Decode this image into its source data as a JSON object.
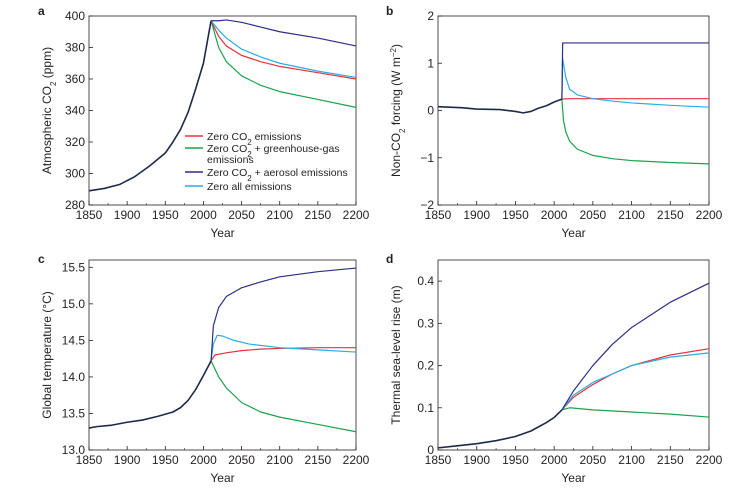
{
  "colors": {
    "zero_co2": "#e8323c",
    "zero_co2_ghg": "#1aa34a",
    "zero_co2_aerosol": "#2b2f86",
    "zero_all": "#27aee4",
    "historical": "#1e2a4a",
    "axis": "#231f20"
  },
  "legend": [
    {
      "key": "zero_co2",
      "label_html": "Zero CO<tspan baseline-shift='sub' font-size='8'>2</tspan> emissions"
    },
    {
      "key": "zero_co2_ghg",
      "label_html": "Zero CO<tspan baseline-shift='sub' font-size='8'>2</tspan> + greenhouse-gas",
      "label2": "emissions"
    },
    {
      "key": "zero_co2_aerosol",
      "label_html": "Zero CO<tspan baseline-shift='sub' font-size='8'>2</tspan> + aerosol emissions"
    },
    {
      "key": "zero_all",
      "label_html": "Zero all emissions"
    }
  ],
  "chart_data": [
    {
      "panel": "a",
      "type": "line",
      "xlabel": "Year",
      "ylabel_html": "Atmospheric CO<tspan baseline-shift='sub' font-size='8'>2</tspan> (ppm)",
      "xlim": [
        1850,
        2200
      ],
      "ylim": [
        280,
        400
      ],
      "xticks": [
        1850,
        1900,
        1950,
        2000,
        2050,
        2100,
        2150,
        2200
      ],
      "yticks": [
        280,
        300,
        320,
        340,
        360,
        380,
        400
      ],
      "ytick_labels": [
        "280",
        "300",
        "320",
        "340",
        "360",
        "380",
        "400"
      ],
      "historical": [
        [
          1850,
          289
        ],
        [
          1870,
          290.5
        ],
        [
          1890,
          293
        ],
        [
          1910,
          298
        ],
        [
          1930,
          305
        ],
        [
          1950,
          313
        ],
        [
          1960,
          320
        ],
        [
          1970,
          328
        ],
        [
          1980,
          339
        ],
        [
          1990,
          354
        ],
        [
          2000,
          370
        ],
        [
          2010,
          397
        ]
      ],
      "series": [
        {
          "key": "zero_co2",
          "points": [
            [
              2010,
              397
            ],
            [
              2020,
              387
            ],
            [
              2030,
              381
            ],
            [
              2050,
              375
            ],
            [
              2075,
              371
            ],
            [
              2100,
              368
            ],
            [
              2150,
              364
            ],
            [
              2200,
              360
            ]
          ]
        },
        {
          "key": "zero_co2_ghg",
          "points": [
            [
              2010,
              397
            ],
            [
              2020,
              380
            ],
            [
              2030,
              371
            ],
            [
              2050,
              362
            ],
            [
              2075,
              356
            ],
            [
              2100,
              352
            ],
            [
              2150,
              347
            ],
            [
              2200,
              342
            ]
          ]
        },
        {
          "key": "zero_co2_aerosol",
          "points": [
            [
              2010,
              397
            ],
            [
              2020,
              397
            ],
            [
              2030,
              397.5
            ],
            [
              2050,
              396
            ],
            [
              2075,
              393
            ],
            [
              2100,
              390
            ],
            [
              2150,
              386
            ],
            [
              2200,
              381
            ]
          ]
        },
        {
          "key": "zero_all",
          "points": [
            [
              2010,
              397
            ],
            [
              2020,
              391
            ],
            [
              2030,
              386
            ],
            [
              2050,
              379
            ],
            [
              2075,
              374
            ],
            [
              2100,
              370
            ],
            [
              2150,
              365
            ],
            [
              2200,
              361
            ]
          ]
        }
      ]
    },
    {
      "panel": "b",
      "type": "line",
      "xlabel": "Year",
      "ylabel_html": "Non-CO<tspan baseline-shift='sub' font-size='8'>2</tspan> forcing (W m<tspan baseline-shift='super' font-size='8'>−2</tspan>)",
      "xlim": [
        1850,
        2200
      ],
      "ylim": [
        -2,
        2
      ],
      "xticks": [
        1850,
        1900,
        1950,
        2000,
        2050,
        2100,
        2150,
        2200
      ],
      "yticks": [
        -2,
        -1,
        0,
        1,
        2
      ],
      "ytick_labels": [
        "−2",
        "−1",
        "0",
        "1",
        "2"
      ],
      "historical": [
        [
          1850,
          0.08
        ],
        [
          1880,
          0.06
        ],
        [
          1900,
          0.03
        ],
        [
          1930,
          0.02
        ],
        [
          1950,
          -0.02
        ],
        [
          1960,
          -0.05
        ],
        [
          1970,
          -0.02
        ],
        [
          1980,
          0.05
        ],
        [
          1990,
          0.1
        ],
        [
          2000,
          0.18
        ],
        [
          2010,
          0.24
        ]
      ],
      "series": [
        {
          "key": "zero_co2",
          "points": [
            [
              2010,
              0.24
            ],
            [
              2020,
              0.25
            ],
            [
              2100,
              0.25
            ],
            [
              2200,
              0.25
            ]
          ]
        },
        {
          "key": "zero_co2_ghg",
          "points": [
            [
              2010,
              0.24
            ],
            [
              2012,
              -0.2
            ],
            [
              2015,
              -0.45
            ],
            [
              2020,
              -0.65
            ],
            [
              2030,
              -0.82
            ],
            [
              2050,
              -0.95
            ],
            [
              2075,
              -1.02
            ],
            [
              2100,
              -1.06
            ],
            [
              2150,
              -1.1
            ],
            [
              2200,
              -1.13
            ]
          ]
        },
        {
          "key": "zero_co2_aerosol",
          "points": [
            [
              2010,
              0.24
            ],
            [
              2011,
              1.43
            ],
            [
              2200,
              1.43
            ]
          ]
        },
        {
          "key": "zero_all",
          "points": [
            [
              2010,
              0.24
            ],
            [
              2011,
              1.1
            ],
            [
              2015,
              0.7
            ],
            [
              2020,
              0.45
            ],
            [
              2030,
              0.33
            ],
            [
              2050,
              0.25
            ],
            [
              2075,
              0.2
            ],
            [
              2100,
              0.16
            ],
            [
              2150,
              0.11
            ],
            [
              2200,
              0.07
            ]
          ]
        }
      ]
    },
    {
      "panel": "c",
      "type": "line",
      "xlabel": "Year",
      "ylabel": "Global temperature (°C)",
      "xlim": [
        1850,
        2200
      ],
      "ylim": [
        13.0,
        15.6
      ],
      "xticks": [
        1850,
        1900,
        1950,
        2000,
        2050,
        2100,
        2150,
        2200
      ],
      "yticks": [
        13.0,
        13.5,
        14.0,
        14.5,
        15.0,
        15.5
      ],
      "ytick_labels": [
        "13.0",
        "13.5",
        "14.0",
        "14.5",
        "15.0",
        "15.5"
      ],
      "historical": [
        [
          1850,
          13.3
        ],
        [
          1860,
          13.32
        ],
        [
          1880,
          13.34
        ],
        [
          1900,
          13.38
        ],
        [
          1920,
          13.41
        ],
        [
          1940,
          13.46
        ],
        [
          1960,
          13.52
        ],
        [
          1970,
          13.58
        ],
        [
          1980,
          13.68
        ],
        [
          1990,
          13.83
        ],
        [
          2000,
          14.02
        ],
        [
          2010,
          14.22
        ]
      ],
      "series": [
        {
          "key": "zero_co2",
          "points": [
            [
              2010,
              14.22
            ],
            [
              2015,
              14.3
            ],
            [
              2030,
              14.33
            ],
            [
              2050,
              14.36
            ],
            [
              2075,
              14.38
            ],
            [
              2100,
              14.39
            ],
            [
              2150,
              14.4
            ],
            [
              2200,
              14.4
            ]
          ]
        },
        {
          "key": "zero_co2_ghg",
          "points": [
            [
              2010,
              14.22
            ],
            [
              2020,
              14.0
            ],
            [
              2030,
              13.85
            ],
            [
              2050,
              13.65
            ],
            [
              2075,
              13.52
            ],
            [
              2100,
              13.45
            ],
            [
              2150,
              13.35
            ],
            [
              2200,
              13.25
            ]
          ]
        },
        {
          "key": "zero_co2_aerosol",
          "points": [
            [
              2010,
              14.22
            ],
            [
              2013,
              14.7
            ],
            [
              2020,
              14.95
            ],
            [
              2030,
              15.1
            ],
            [
              2050,
              15.22
            ],
            [
              2075,
              15.3
            ],
            [
              2100,
              15.37
            ],
            [
              2150,
              15.44
            ],
            [
              2200,
              15.49
            ]
          ]
        },
        {
          "key": "zero_all",
          "points": [
            [
              2010,
              14.22
            ],
            [
              2013,
              14.45
            ],
            [
              2018,
              14.57
            ],
            [
              2025,
              14.56
            ],
            [
              2040,
              14.5
            ],
            [
              2060,
              14.45
            ],
            [
              2100,
              14.4
            ],
            [
              2150,
              14.37
            ],
            [
              2200,
              14.34
            ]
          ]
        }
      ]
    },
    {
      "panel": "d",
      "type": "line",
      "xlabel": "Year",
      "ylabel": "Thermal sea-level rise (m)",
      "xlim": [
        1850,
        2200
      ],
      "ylim": [
        0,
        0.45
      ],
      "xticks": [
        1850,
        1900,
        1950,
        2000,
        2050,
        2100,
        2150,
        2200
      ],
      "yticks": [
        0,
        0.1,
        0.2,
        0.3,
        0.4
      ],
      "ytick_labels": [
        "0",
        "0.1",
        "0.2",
        "0.3",
        "0.4"
      ],
      "historical": [
        [
          1850,
          0.005
        ],
        [
          1875,
          0.01
        ],
        [
          1900,
          0.015
        ],
        [
          1925,
          0.022
        ],
        [
          1950,
          0.032
        ],
        [
          1970,
          0.045
        ],
        [
          1990,
          0.065
        ],
        [
          2000,
          0.077
        ],
        [
          2010,
          0.095
        ]
      ],
      "series": [
        {
          "key": "zero_co2",
          "points": [
            [
              2010,
              0.095
            ],
            [
              2025,
              0.125
            ],
            [
              2050,
              0.155
            ],
            [
              2075,
              0.18
            ],
            [
              2100,
              0.2
            ],
            [
              2150,
              0.225
            ],
            [
              2200,
              0.24
            ]
          ]
        },
        {
          "key": "zero_co2_ghg",
          "points": [
            [
              2010,
              0.095
            ],
            [
              2020,
              0.1
            ],
            [
              2050,
              0.095
            ],
            [
              2100,
              0.09
            ],
            [
              2150,
              0.085
            ],
            [
              2200,
              0.078
            ]
          ]
        },
        {
          "key": "zero_co2_aerosol",
          "points": [
            [
              2010,
              0.095
            ],
            [
              2025,
              0.14
            ],
            [
              2050,
              0.2
            ],
            [
              2075,
              0.25
            ],
            [
              2100,
              0.29
            ],
            [
              2150,
              0.35
            ],
            [
              2200,
              0.395
            ]
          ]
        },
        {
          "key": "zero_all",
          "points": [
            [
              2010,
              0.095
            ],
            [
              2025,
              0.13
            ],
            [
              2050,
              0.16
            ],
            [
              2075,
              0.18
            ],
            [
              2100,
              0.2
            ],
            [
              2150,
              0.22
            ],
            [
              2200,
              0.23
            ]
          ]
        }
      ]
    }
  ]
}
